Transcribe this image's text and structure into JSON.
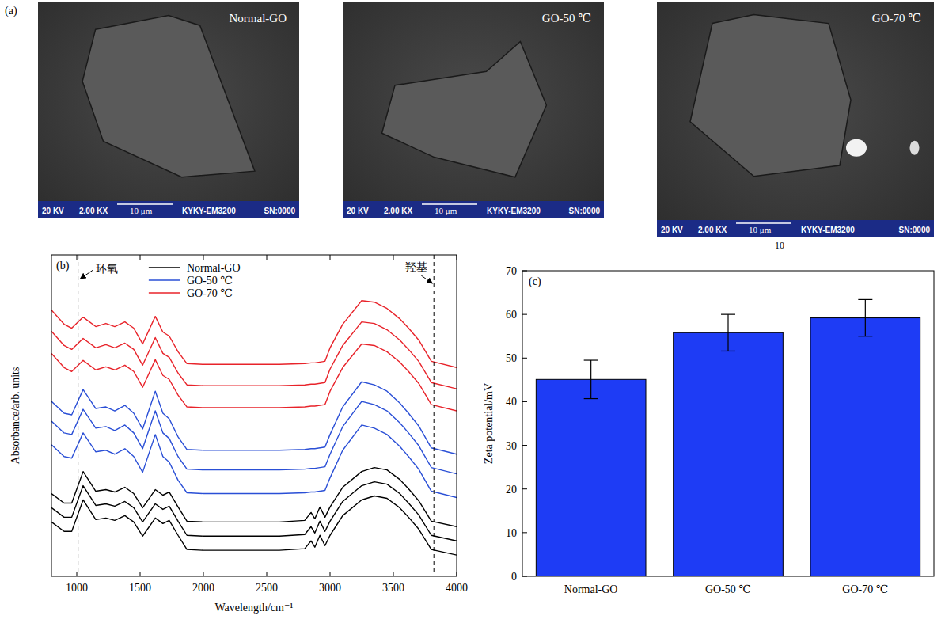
{
  "images": {
    "letter": "(a)",
    "panels": [
      {
        "label": "Normal-GO",
        "info": [
          "20 KV",
          "2.00 KX",
          "10 μm",
          "KYKY-EM3200",
          "SN:0000"
        ]
      },
      {
        "label": "GO-50 ℃",
        "info": [
          "20 KV",
          "2.00 KX",
          "10 μm",
          "KYKY-EM3200",
          "SN:0000"
        ]
      },
      {
        "label": "GO-70 ℃",
        "info": [
          "20 KV",
          "2.00 KX",
          "10 μm",
          "KYKY-EM3200",
          "SN:0000"
        ]
      }
    ],
    "caption": "10"
  },
  "chart_data": [
    {
      "type": "line",
      "letter": "(b)",
      "x_label": "Wavelength/cm⁻¹",
      "y_label": "Absorbance/arb. units",
      "x": [
        800,
        900,
        960,
        1050,
        1150,
        1230,
        1300,
        1380,
        1450,
        1520,
        1620,
        1680,
        1730,
        1800,
        1870,
        2000,
        2300,
        2600,
        2800,
        2850,
        2880,
        2920,
        2960,
        3000,
        3100,
        3250,
        3350,
        3450,
        3550,
        3620,
        3700,
        3800,
        4000
      ],
      "xlim": [
        800,
        4000
      ],
      "xticks": [
        1000,
        1500,
        2000,
        2500,
        3000,
        3500,
        4000
      ],
      "ylim": [
        0,
        408
      ],
      "tick_labels": "x",
      "legend": "top",
      "annotations": [
        {
          "text": "环氧",
          "x": 1010
        },
        {
          "text": "羟基",
          "x": 3820
        }
      ],
      "series": [
        {
          "name": "GO-70 ℃",
          "color": "#e8232a",
          "values": [
            338,
            320,
            315,
            329,
            317,
            321,
            317,
            323,
            315,
            295,
            330,
            310,
            305,
            285,
            270,
            269,
            269,
            269,
            270,
            271,
            271,
            272,
            273,
            290,
            320,
            350,
            348,
            340,
            327,
            315,
            300,
            273,
            265
          ]
        },
        {
          "name": "GO-70 ℃",
          "color": "#e8232a",
          "values": [
            311,
            293,
            288,
            302,
            290,
            294,
            290,
            296,
            288,
            268,
            303,
            283,
            278,
            258,
            243,
            242,
            242,
            242,
            243,
            244,
            244,
            245,
            246,
            263,
            293,
            323,
            321,
            313,
            300,
            288,
            273,
            246,
            238
          ]
        },
        {
          "name": "GO-70 ℃",
          "color": "#e8232a",
          "values": [
            283,
            265,
            260,
            274,
            262,
            266,
            262,
            268,
            260,
            240,
            275,
            255,
            250,
            230,
            215,
            214,
            214,
            214,
            215,
            216,
            216,
            217,
            218,
            235,
            265,
            295,
            293,
            285,
            272,
            260,
            245,
            218,
            210
          ]
        },
        {
          "name": "GO-50 ℃",
          "color": "#2a4fd6",
          "values": [
            222,
            207,
            205,
            237,
            213,
            215,
            210,
            217,
            207,
            187,
            235,
            207,
            200,
            177,
            161,
            160,
            160,
            160,
            161,
            162,
            162,
            163,
            164,
            180,
            215,
            247,
            243,
            235,
            220,
            207,
            191,
            163,
            155
          ]
        },
        {
          "name": "GO-50 ℃",
          "color": "#2a4fd6",
          "values": [
            197,
            182,
            180,
            212,
            188,
            190,
            185,
            192,
            182,
            162,
            210,
            182,
            175,
            152,
            136,
            135,
            135,
            135,
            136,
            137,
            137,
            138,
            139,
            155,
            190,
            222,
            218,
            210,
            195,
            182,
            166,
            138,
            130
          ]
        },
        {
          "name": "GO-50 ℃",
          "color": "#2a4fd6",
          "values": [
            167,
            152,
            150,
            182,
            158,
            160,
            155,
            162,
            152,
            132,
            180,
            152,
            145,
            122,
            106,
            105,
            105,
            105,
            106,
            107,
            107,
            108,
            109,
            125,
            160,
            192,
            188,
            180,
            165,
            152,
            136,
            108,
            100
          ]
        },
        {
          "name": "Normal-GO",
          "color": "#000000",
          "values": [
            105,
            93,
            93,
            133,
            108,
            110,
            107,
            113,
            105,
            87,
            110,
            103,
            107,
            88,
            70,
            69,
            69,
            69,
            71,
            81,
            73,
            88,
            75,
            88,
            113,
            133,
            138,
            135,
            123,
            111,
            96,
            70,
            63
          ]
        },
        {
          "name": "Normal-GO",
          "color": "#000000",
          "values": [
            87,
            75,
            75,
            115,
            90,
            92,
            89,
            95,
            87,
            69,
            92,
            85,
            89,
            70,
            52,
            51,
            51,
            51,
            53,
            63,
            55,
            70,
            57,
            70,
            95,
            115,
            120,
            117,
            105,
            93,
            78,
            52,
            45
          ]
        },
        {
          "name": "Normal-GO",
          "color": "#000000",
          "values": [
            69,
            57,
            57,
            97,
            72,
            74,
            71,
            77,
            69,
            51,
            74,
            67,
            71,
            52,
            34,
            33,
            33,
            33,
            35,
            45,
            37,
            52,
            39,
            52,
            77,
            97,
            102,
            99,
            87,
            75,
            60,
            34,
            27
          ]
        }
      ]
    },
    {
      "type": "bar",
      "letter": "(c)",
      "y_label": "Zeta potential/mV",
      "categories": [
        "Normal-GO",
        "GO-50 ℃",
        "GO-70 ℃"
      ],
      "values": [
        45.1,
        55.8,
        59.2
      ],
      "errors": [
        4.4,
        4.2,
        4.2
      ],
      "color": "#1e3cf5",
      "ylim": [
        0,
        70
      ],
      "yticks": [
        0,
        10,
        20,
        30,
        40,
        50,
        60,
        70
      ]
    }
  ]
}
